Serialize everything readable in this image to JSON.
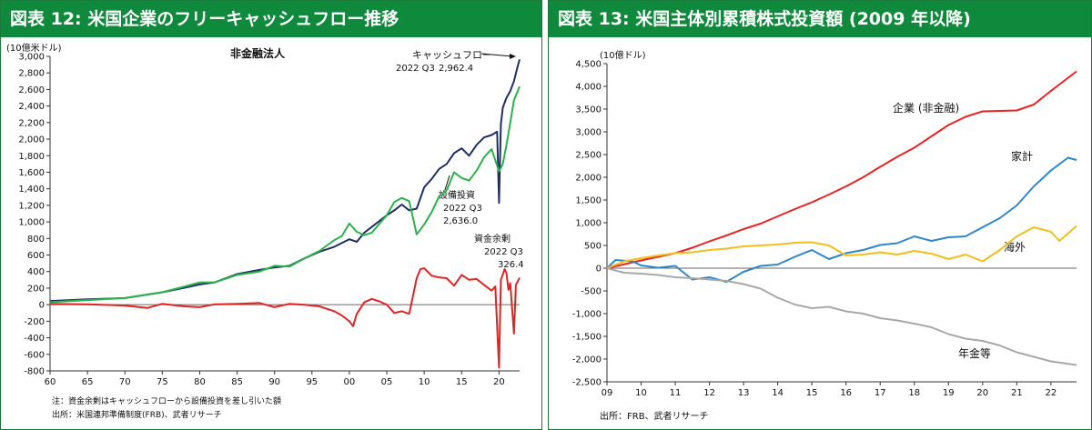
{
  "left": {
    "header": "図表 12: 米国企業のフリーキャッシュフロー推移",
    "unit": "(10億米ドル)",
    "subtitle": "非金融法人",
    "note": "注：資金余剰はキャッシュフローから設備投資を差し引いた額",
    "source": "出所：米国連邦準備制度(FRB)、武者リサーチ",
    "annotations": {
      "cf_name": "キャッシュフロー",
      "cf_period": "2022 Q3",
      "cf_value": "2,962.4",
      "capex_name": "設備投資",
      "capex_period": "2022 Q3",
      "capex_value": "2,636.0",
      "surplus_name": "資金余剰",
      "surplus_period": "2022 Q3",
      "surplus_value": "326.4"
    }
  },
  "right": {
    "header": "図表 13: 米国主体別累積株式投資額 (2009 年以降)",
    "unit": "(10億ドル)",
    "source": "出所：FRB、武者リサーチ",
    "labels": {
      "corporate": "企業 (非金融)",
      "household": "家計",
      "foreign": "海外",
      "pension": "年金等"
    }
  },
  "chart_data": [
    {
      "type": "line",
      "title": "非金融法人",
      "ylabel": "(10億米ドル)",
      "xlim": [
        1960,
        2022.75
      ],
      "ylim": [
        -800,
        3000
      ],
      "x_ticks": [
        60,
        65,
        70,
        75,
        80,
        85,
        90,
        95,
        "00",
        "05",
        10,
        15,
        20
      ],
      "y_ticks": [
        -800,
        -600,
        -400,
        -200,
        0,
        200,
        400,
        600,
        800,
        1000,
        1200,
        1400,
        1600,
        1800,
        2000,
        2200,
        2400,
        2600,
        2800,
        3000
      ],
      "grid": false,
      "series": [
        {
          "name": "キャッシュフロー",
          "color": "#1f2f63",
          "points": [
            [
              1960,
              45
            ],
            [
              1965,
              65
            ],
            [
              1970,
              80
            ],
            [
              1975,
              150
            ],
            [
              1978,
              205
            ],
            [
              1980,
              245
            ],
            [
              1982,
              270
            ],
            [
              1985,
              370
            ],
            [
              1988,
              420
            ],
            [
              1990,
              450
            ],
            [
              1992,
              470
            ],
            [
              1994,
              560
            ],
            [
              1996,
              640
            ],
            [
              1998,
              700
            ],
            [
              2000,
              790
            ],
            [
              2001,
              760
            ],
            [
              2002,
              870
            ],
            [
              2003,
              940
            ],
            [
              2005,
              1080
            ],
            [
              2006,
              1140
            ],
            [
              2007,
              1210
            ],
            [
              2008,
              1140
            ],
            [
              2009,
              1160
            ],
            [
              2010,
              1420
            ],
            [
              2011,
              1520
            ],
            [
              2012,
              1640
            ],
            [
              2013,
              1700
            ],
            [
              2014,
              1830
            ],
            [
              2015,
              1890
            ],
            [
              2016,
              1800
            ],
            [
              2017,
              1930
            ],
            [
              2018,
              2020
            ],
            [
              2019,
              2050
            ],
            [
              2019.75,
              2090
            ],
            [
              2020,
              1230
            ],
            [
              2020.25,
              2180
            ],
            [
              2020.5,
              2380
            ],
            [
              2021,
              2500
            ],
            [
              2021.5,
              2580
            ],
            [
              2022,
              2700
            ],
            [
              2022.5,
              2880
            ],
            [
              2022.75,
              2962.4
            ]
          ]
        },
        {
          "name": "設備投資",
          "color": "#2ab34a",
          "points": [
            [
              1960,
              30
            ],
            [
              1965,
              55
            ],
            [
              1970,
              80
            ],
            [
              1975,
              150
            ],
            [
              1978,
              220
            ],
            [
              1980,
              270
            ],
            [
              1982,
              270
            ],
            [
              1985,
              360
            ],
            [
              1988,
              400
            ],
            [
              1990,
              470
            ],
            [
              1992,
              460
            ],
            [
              1994,
              560
            ],
            [
              1996,
              650
            ],
            [
              1998,
              780
            ],
            [
              1999,
              830
            ],
            [
              2000,
              980
            ],
            [
              2001,
              880
            ],
            [
              2002,
              840
            ],
            [
              2003,
              870
            ],
            [
              2005,
              1080
            ],
            [
              2006,
              1240
            ],
            [
              2007,
              1290
            ],
            [
              2008,
              1250
            ],
            [
              2009,
              850
            ],
            [
              2010,
              970
            ],
            [
              2011,
              1120
            ],
            [
              2012,
              1310
            ],
            [
              2013,
              1380
            ],
            [
              2014,
              1600
            ],
            [
              2015,
              1530
            ],
            [
              2016,
              1500
            ],
            [
              2017,
              1620
            ],
            [
              2018,
              1780
            ],
            [
              2019,
              1880
            ],
            [
              2020,
              1610
            ],
            [
              2020.5,
              1700
            ],
            [
              2021,
              1930
            ],
            [
              2021.5,
              2200
            ],
            [
              2022,
              2470
            ],
            [
              2022.5,
              2580
            ],
            [
              2022.75,
              2636.0
            ]
          ]
        },
        {
          "name": "資金余剰",
          "color": "#e02424",
          "points": [
            [
              1960,
              10
            ],
            [
              1965,
              5
            ],
            [
              1970,
              -10
            ],
            [
              1973,
              -40
            ],
            [
              1975,
              10
            ],
            [
              1978,
              -20
            ],
            [
              1980,
              -30
            ],
            [
              1982,
              5
            ],
            [
              1985,
              10
            ],
            [
              1988,
              20
            ],
            [
              1990,
              -30
            ],
            [
              1992,
              10
            ],
            [
              1994,
              0
            ],
            [
              1996,
              -20
            ],
            [
              1998,
              -80
            ],
            [
              1999,
              -130
            ],
            [
              2000,
              -200
            ],
            [
              2000.5,
              -260
            ],
            [
              2001,
              -110
            ],
            [
              2002,
              30
            ],
            [
              2003,
              70
            ],
            [
              2004,
              40
            ],
            [
              2005,
              0
            ],
            [
              2006,
              -100
            ],
            [
              2007,
              -80
            ],
            [
              2008,
              -110
            ],
            [
              2009,
              320
            ],
            [
              2009.5,
              430
            ],
            [
              2010,
              440
            ],
            [
              2011,
              350
            ],
            [
              2012,
              330
            ],
            [
              2013,
              320
            ],
            [
              2014,
              230
            ],
            [
              2015,
              360
            ],
            [
              2016,
              300
            ],
            [
              2017,
              310
            ],
            [
              2018,
              240
            ],
            [
              2019,
              170
            ],
            [
              2019.5,
              220
            ],
            [
              2020,
              -760
            ],
            [
              2020.25,
              300
            ],
            [
              2020.75,
              430
            ],
            [
              2021,
              380
            ],
            [
              2021.25,
              180
            ],
            [
              2021.5,
              260
            ],
            [
              2022,
              -350
            ],
            [
              2022.25,
              240
            ],
            [
              2022.75,
              326.4
            ]
          ]
        }
      ]
    },
    {
      "type": "line",
      "ylabel": "(10億ドル)",
      "xlim": [
        2009,
        2022.75
      ],
      "ylim": [
        -2500,
        4500
      ],
      "x_ticks": [
        "09",
        10,
        11,
        12,
        13,
        14,
        15,
        16,
        17,
        18,
        19,
        20,
        21,
        22
      ],
      "y_ticks": [
        -2500,
        -2000,
        -1500,
        -1000,
        -500,
        0,
        500,
        1000,
        1500,
        2000,
        2500,
        3000,
        3500,
        4000,
        4500
      ],
      "grid": false,
      "series": [
        {
          "name": "企業 (非金融)",
          "color": "#e82424",
          "points": [
            [
              2009,
              0
            ],
            [
              2010,
              170
            ],
            [
              2011,
              330
            ],
            [
              2011.5,
              450
            ],
            [
              2012,
              590
            ],
            [
              2012.5,
              720
            ],
            [
              2013,
              860
            ],
            [
              2013.5,
              980
            ],
            [
              2014,
              1140
            ],
            [
              2014.5,
              1300
            ],
            [
              2015,
              1450
            ],
            [
              2015.5,
              1620
            ],
            [
              2016,
              1800
            ],
            [
              2016.5,
              2000
            ],
            [
              2017,
              2230
            ],
            [
              2017.5,
              2450
            ],
            [
              2018,
              2650
            ],
            [
              2018.5,
              2900
            ],
            [
              2019,
              3150
            ],
            [
              2019.5,
              3330
            ],
            [
              2020,
              3450
            ],
            [
              2020.5,
              3460
            ],
            [
              2021,
              3470
            ],
            [
              2021.5,
              3600
            ],
            [
              2022,
              3900
            ],
            [
              2022.75,
              4330
            ]
          ]
        },
        {
          "name": "家計",
          "color": "#2f86c9",
          "points": [
            [
              2009,
              0
            ],
            [
              2009.25,
              180
            ],
            [
              2009.75,
              150
            ],
            [
              2010,
              60
            ],
            [
              2010.5,
              10
            ],
            [
              2011,
              50
            ],
            [
              2011.25,
              -100
            ],
            [
              2011.5,
              -250
            ],
            [
              2012,
              -200
            ],
            [
              2012.5,
              -300
            ],
            [
              2013,
              -80
            ],
            [
              2013.5,
              50
            ],
            [
              2014,
              80
            ],
            [
              2014.5,
              250
            ],
            [
              2015,
              400
            ],
            [
              2015.5,
              200
            ],
            [
              2016,
              330
            ],
            [
              2016.5,
              400
            ],
            [
              2017,
              510
            ],
            [
              2017.5,
              550
            ],
            [
              2018,
              700
            ],
            [
              2018.5,
              600
            ],
            [
              2019,
              680
            ],
            [
              2019.5,
              700
            ],
            [
              2020,
              900
            ],
            [
              2020.5,
              1100
            ],
            [
              2021,
              1380
            ],
            [
              2021.5,
              1800
            ],
            [
              2022,
              2150
            ],
            [
              2022.5,
              2430
            ],
            [
              2022.75,
              2380
            ]
          ]
        },
        {
          "name": "海外",
          "color": "#f2be1a",
          "points": [
            [
              2009,
              0
            ],
            [
              2009.5,
              150
            ],
            [
              2010,
              220
            ],
            [
              2010.5,
              280
            ],
            [
              2011,
              330
            ],
            [
              2011.5,
              350
            ],
            [
              2012,
              400
            ],
            [
              2012.5,
              430
            ],
            [
              2013,
              480
            ],
            [
              2013.5,
              500
            ],
            [
              2014,
              520
            ],
            [
              2014.5,
              560
            ],
            [
              2015,
              570
            ],
            [
              2015.5,
              500
            ],
            [
              2016,
              280
            ],
            [
              2016.5,
              300
            ],
            [
              2017,
              350
            ],
            [
              2017.5,
              300
            ],
            [
              2018,
              380
            ],
            [
              2018.5,
              320
            ],
            [
              2019,
              200
            ],
            [
              2019.5,
              300
            ],
            [
              2020,
              150
            ],
            [
              2020.5,
              400
            ],
            [
              2021,
              700
            ],
            [
              2021.5,
              900
            ],
            [
              2022,
              800
            ],
            [
              2022.25,
              600
            ],
            [
              2022.75,
              930
            ]
          ]
        },
        {
          "name": "年金等",
          "color": "#a8a8a8",
          "points": [
            [
              2009,
              0
            ],
            [
              2009.5,
              -100
            ],
            [
              2010,
              -120
            ],
            [
              2010.5,
              -150
            ],
            [
              2011,
              -200
            ],
            [
              2011.5,
              -220
            ],
            [
              2012,
              -250
            ],
            [
              2012.5,
              -280
            ],
            [
              2013,
              -350
            ],
            [
              2013.5,
              -450
            ],
            [
              2014,
              -650
            ],
            [
              2014.5,
              -800
            ],
            [
              2015,
              -880
            ],
            [
              2015.5,
              -850
            ],
            [
              2016,
              -950
            ],
            [
              2016.5,
              -1000
            ],
            [
              2017,
              -1100
            ],
            [
              2017.5,
              -1150
            ],
            [
              2018,
              -1220
            ],
            [
              2018.5,
              -1300
            ],
            [
              2019,
              -1450
            ],
            [
              2019.5,
              -1550
            ],
            [
              2020,
              -1600
            ],
            [
              2020.5,
              -1700
            ],
            [
              2021,
              -1850
            ],
            [
              2021.5,
              -1950
            ],
            [
              2022,
              -2050
            ],
            [
              2022.75,
              -2130
            ]
          ]
        }
      ]
    }
  ]
}
